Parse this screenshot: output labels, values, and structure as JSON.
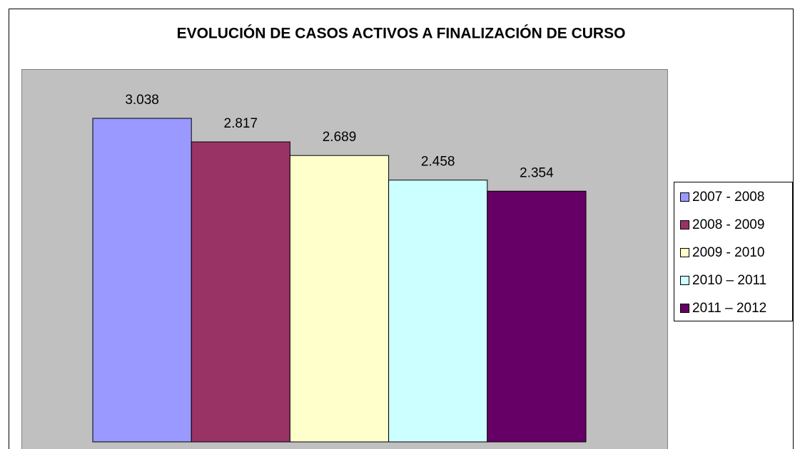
{
  "chart_data": {
    "type": "bar",
    "title": "EVOLUCIÓN DE CASOS ACTIVOS A FINALIZACIÓN DE CURSO",
    "series": [
      {
        "name": "2007 - 2008",
        "color": "#9999ff",
        "values": [
          3038
        ],
        "value_labels": [
          "3.038"
        ]
      },
      {
        "name": "2008 - 2009",
        "color": "#993366",
        "values": [
          2817
        ],
        "value_labels": [
          "2.817"
        ]
      },
      {
        "name": "2009 - 2010",
        "color": "#ffffcc",
        "values": [
          2689
        ],
        "value_labels": [
          "2.689"
        ]
      },
      {
        "name": "2010 – 2011",
        "color": "#ccffff",
        "values": [
          2458
        ],
        "value_labels": [
          "2.458"
        ]
      },
      {
        "name": "2011 – 2012",
        "color": "#660066",
        "values": [
          2354
        ],
        "value_labels": [
          "2.354"
        ]
      }
    ],
    "ylim": [
      0,
      3500
    ],
    "legend": "right"
  }
}
